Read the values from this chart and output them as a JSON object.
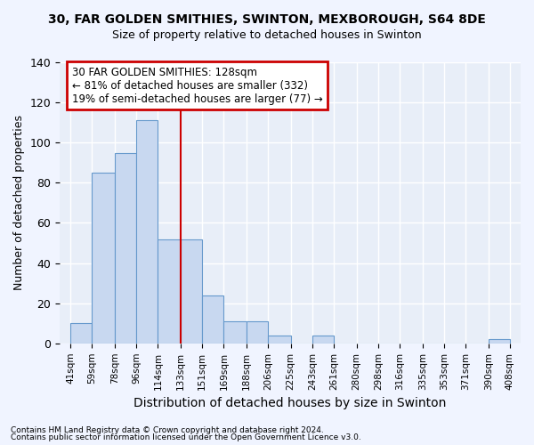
{
  "title1": "30, FAR GOLDEN SMITHIES, SWINTON, MEXBOROUGH, S64 8DE",
  "title2": "Size of property relative to detached houses in Swinton",
  "xlabel": "Distribution of detached houses by size in Swinton",
  "ylabel": "Number of detached properties",
  "bar_values": [
    10,
    85,
    95,
    111,
    52,
    52,
    24,
    11,
    11,
    4,
    0,
    4,
    0,
    0,
    0,
    0,
    0,
    0,
    0,
    2
  ],
  "bar_labels": [
    "41sqm",
    "59sqm",
    "78sqm",
    "96sqm",
    "114sqm",
    "133sqm",
    "151sqm",
    "169sqm",
    "188sqm",
    "206sqm",
    "225sqm",
    "243sqm",
    "261sqm",
    "280sqm",
    "298sqm",
    "316sqm",
    "335sqm",
    "353sqm",
    "371sqm",
    "390sqm",
    "408sqm"
  ],
  "bar_color": "#c8d8f0",
  "bar_edge_color": "#6699cc",
  "annotation_text_line1": "30 FAR GOLDEN SMITHIES: 128sqm",
  "annotation_text_line2": "← 81% of detached houses are smaller (332)",
  "annotation_text_line3": "19% of semi-detached houses are larger (77) →",
  "annotation_box_color": "#ffffff",
  "annotation_box_edge": "#cc0000",
  "vline_color": "#cc0000",
  "ylim": [
    0,
    140
  ],
  "yticks": [
    0,
    20,
    40,
    60,
    80,
    100,
    120,
    140
  ],
  "footer1": "Contains HM Land Registry data © Crown copyright and database right 2024.",
  "footer2": "Contains public sector information licensed under the Open Government Licence v3.0.",
  "bg_color": "#f0f4ff",
  "plot_bg_color": "#e8eef8",
  "grid_color": "#ffffff"
}
